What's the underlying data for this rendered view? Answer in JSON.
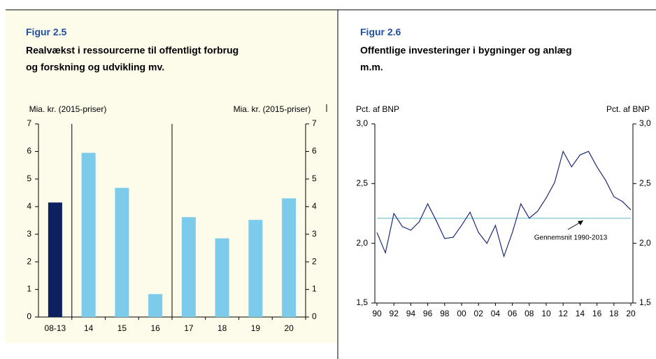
{
  "chart_data": [
    {
      "type": "bar",
      "title": "Figur 2.5",
      "subtitle": [
        "Realvækst i ressourcerne til offentligt forbrug",
        "og forskning og udvikling mv."
      ],
      "ylabel": "Mia. kr. (2015-priser)",
      "y2label": "Mia. kr. (2015-priser)",
      "categories": [
        "08-13",
        "14",
        "15",
        "16",
        "17",
        "18",
        "19",
        "20"
      ],
      "values": [
        4.15,
        5.95,
        4.68,
        0.83,
        3.62,
        2.85,
        3.52,
        4.3
      ],
      "colors": [
        "#0d2060",
        "#7ccbea",
        "#7ccbea",
        "#7ccbea",
        "#7ccbea",
        "#7ccbea",
        "#7ccbea",
        "#7ccbea"
      ],
      "ylim": [
        0,
        7
      ],
      "yticks": [
        0,
        1,
        2,
        3,
        4,
        5,
        6,
        7
      ],
      "y2lim": [
        0,
        7
      ],
      "y2ticks": [
        0,
        1,
        2,
        3,
        4,
        5,
        6,
        7
      ]
    },
    {
      "type": "line",
      "title": "Figur 2.6",
      "subtitle": [
        "Offentlige investeringer i bygninger og anlæg",
        "m.m."
      ],
      "ylabel": "Pct. af BNP",
      "y2label": "Pct. af BNP",
      "x": [
        1990,
        1991,
        1992,
        1993,
        1994,
        1995,
        1996,
        1997,
        1998,
        1999,
        2000,
        2001,
        2002,
        2003,
        2004,
        2005,
        2006,
        2007,
        2008,
        2009,
        2010,
        2011,
        2012,
        2013,
        2014,
        2015,
        2016,
        2017,
        2018,
        2019,
        2020
      ],
      "series": [
        {
          "color": "#1c2a78",
          "values": [
            2.09,
            1.92,
            2.25,
            2.14,
            2.11,
            2.18,
            2.33,
            2.19,
            2.04,
            2.05,
            2.15,
            2.26,
            2.09,
            2.0,
            2.15,
            1.89,
            2.09,
            2.33,
            2.21,
            2.27,
            2.38,
            2.51,
            2.77,
            2.64,
            2.74,
            2.77,
            2.64,
            2.53,
            2.39,
            2.35,
            2.28
          ]
        }
      ],
      "reference_line": {
        "value": 2.21,
        "color": "#8fd0d8",
        "label": "Gennemsnit 1990-2013"
      },
      "xlim": [
        1990,
        2020
      ],
      "xticks": [
        {
          "value": 1990,
          "label": "90"
        },
        {
          "value": 1992,
          "label": "92"
        },
        {
          "value": 1994,
          "label": "94"
        },
        {
          "value": 1996,
          "label": "96"
        },
        {
          "value": 1998,
          "label": "98"
        },
        {
          "value": 2000,
          "label": "00"
        },
        {
          "value": 2002,
          "label": "02"
        },
        {
          "value": 2004,
          "label": "04"
        },
        {
          "value": 2006,
          "label": "06"
        },
        {
          "value": 2008,
          "label": "08"
        },
        {
          "value": 2010,
          "label": "10"
        },
        {
          "value": 2012,
          "label": "12"
        },
        {
          "value": 2014,
          "label": "14"
        },
        {
          "value": 2016,
          "label": "16"
        },
        {
          "value": 2018,
          "label": "18"
        },
        {
          "value": 2020,
          "label": "20"
        }
      ],
      "ylim": [
        1.5,
        3.0
      ],
      "yticks": [
        {
          "value": 1.5,
          "label": "1,5"
        },
        {
          "value": 2.0,
          "label": "2,0"
        },
        {
          "value": 2.5,
          "label": "2,5"
        },
        {
          "value": 3.0,
          "label": "3,0"
        }
      ],
      "y2lim": [
        1.5,
        3.0
      ],
      "y2ticks": [
        {
          "value": 1.5,
          "label": "1,5"
        },
        {
          "value": 2.0,
          "label": "2,0"
        },
        {
          "value": 2.5,
          "label": "2,5"
        },
        {
          "value": 3.0,
          "label": "3,0"
        }
      ]
    }
  ]
}
